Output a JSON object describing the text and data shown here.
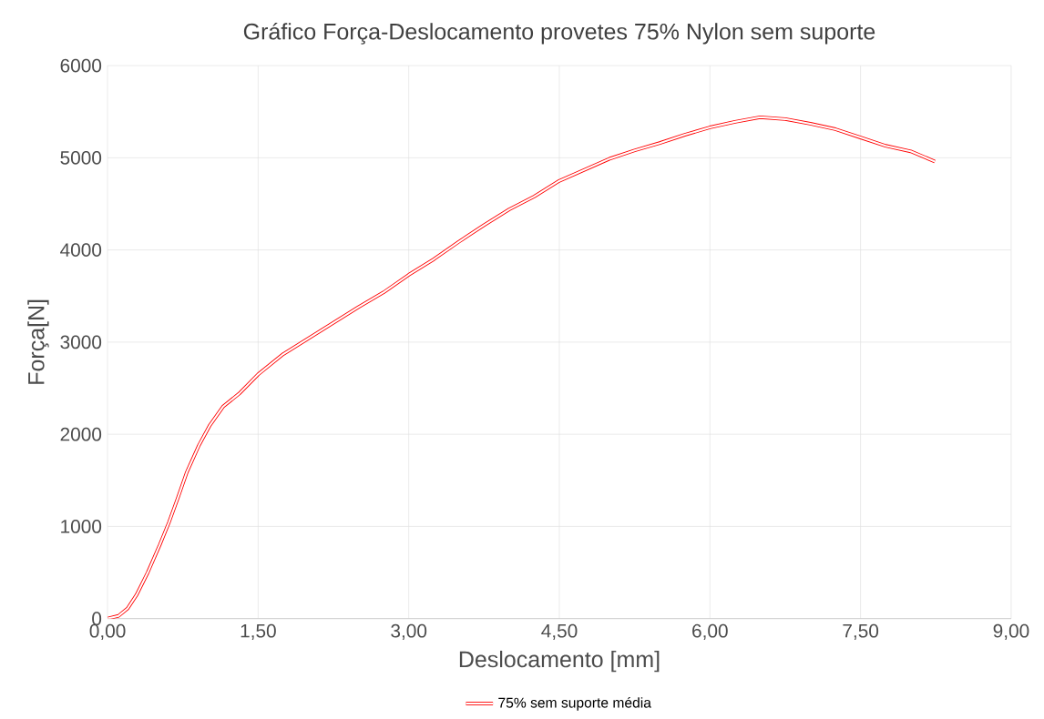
{
  "chart_data": {
    "type": "line",
    "title": "Gráfico Força-Deslocamento provetes 75% Nylon sem suporte",
    "xlabel": "Deslocamento  [mm]",
    "ylabel": "Força[N]",
    "xlim": [
      0,
      9
    ],
    "ylim": [
      0,
      6000
    ],
    "xticks": [
      {
        "value": 0,
        "label": "0,00"
      },
      {
        "value": 1.5,
        "label": "1,50"
      },
      {
        "value": 3,
        "label": "3,00"
      },
      {
        "value": 4.5,
        "label": "4,50"
      },
      {
        "value": 6,
        "label": "6,00"
      },
      {
        "value": 7.5,
        "label": "7,50"
      },
      {
        "value": 9,
        "label": "9,00"
      }
    ],
    "yticks": [
      0,
      1000,
      2000,
      3000,
      4000,
      5000,
      6000
    ],
    "grid": true,
    "legend": "bottom",
    "marker": "none",
    "line_style": "solid",
    "series": [
      {
        "name": "75% sem suporte média",
        "color": "#ff0000",
        "x": [
          0,
          0.11,
          0.2,
          0.29,
          0.4,
          0.52,
          0.61,
          0.7,
          0.79,
          0.91,
          1.02,
          1.15,
          1.31,
          1.5,
          1.75,
          2.0,
          2.25,
          2.5,
          2.75,
          3.0,
          3.25,
          3.5,
          3.75,
          4.0,
          4.25,
          4.5,
          4.75,
          5.0,
          5.25,
          5.5,
          5.75,
          6.0,
          6.25,
          6.5,
          6.75,
          7.0,
          7.25,
          7.5,
          7.75,
          8.0,
          8.24
        ],
        "values": [
          0,
          30,
          110,
          260,
          500,
          800,
          1040,
          1310,
          1590,
          1880,
          2100,
          2300,
          2440,
          2650,
          2870,
          3040,
          3210,
          3380,
          3540,
          3730,
          3900,
          4090,
          4270,
          4440,
          4580,
          4750,
          4870,
          4990,
          5080,
          5160,
          5250,
          5330,
          5390,
          5440,
          5420,
          5370,
          5310,
          5220,
          5130,
          5070,
          4960
        ]
      }
    ]
  }
}
